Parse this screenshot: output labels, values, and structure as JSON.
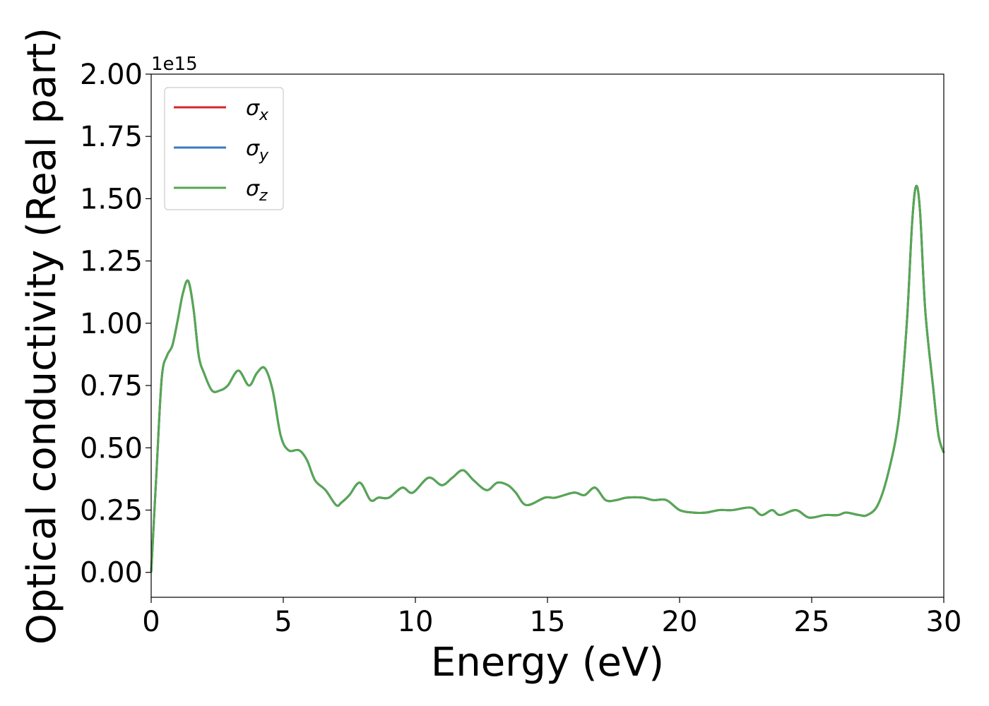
{
  "chart_data": {
    "type": "line",
    "xlabel": "Energy (eV)",
    "ylabel": "Optical conductivity (Real part)",
    "y_offset_label": "1e15",
    "xlim": [
      0,
      30
    ],
    "ylim": [
      -0.1,
      2.0
    ],
    "x_ticks": [
      "0",
      "5",
      "10",
      "15",
      "20",
      "25",
      "30"
    ],
    "y_ticks": [
      "0.00",
      "0.25",
      "0.50",
      "0.75",
      "1.00",
      "1.25",
      "1.50",
      "1.75",
      "2.00"
    ],
    "grid": false,
    "legend_position": "top-left",
    "x": [
      0,
      0.2,
      0.4,
      0.6,
      0.8,
      1.0,
      1.2,
      1.4,
      1.6,
      1.8,
      2.0,
      2.3,
      2.6,
      2.9,
      3.3,
      3.7,
      4.0,
      4.3,
      4.6,
      4.9,
      5.2,
      5.6,
      5.9,
      6.2,
      6.6,
      7.0,
      7.2,
      7.5,
      7.9,
      8.3,
      8.6,
      9.0,
      9.5,
      9.9,
      10.5,
      11.0,
      11.4,
      11.8,
      12.2,
      12.7,
      13.1,
      13.5,
      13.8,
      14.2,
      14.9,
      15.3,
      16.0,
      16.4,
      16.8,
      17.2,
      17.6,
      18.0,
      18.6,
      19.0,
      19.5,
      20.0,
      20.5,
      21.0,
      21.5,
      22.0,
      22.7,
      23.1,
      23.5,
      23.8,
      24.4,
      24.9,
      25.5,
      26.0,
      26.3,
      26.8,
      27.1,
      27.5,
      27.9,
      28.3,
      28.6,
      28.8,
      28.95,
      29.1,
      29.3,
      29.6,
      29.8,
      30.0
    ],
    "series": [
      {
        "name": "x",
        "color": "#d62728",
        "values": [
          0.0,
          0.4,
          0.78,
          0.87,
          0.91,
          1.01,
          1.12,
          1.17,
          1.06,
          0.87,
          0.8,
          0.73,
          0.73,
          0.75,
          0.81,
          0.75,
          0.8,
          0.82,
          0.73,
          0.55,
          0.49,
          0.49,
          0.45,
          0.37,
          0.33,
          0.27,
          0.28,
          0.31,
          0.36,
          0.29,
          0.3,
          0.3,
          0.34,
          0.32,
          0.38,
          0.35,
          0.38,
          0.41,
          0.37,
          0.33,
          0.36,
          0.35,
          0.32,
          0.27,
          0.3,
          0.3,
          0.32,
          0.31,
          0.34,
          0.29,
          0.29,
          0.3,
          0.3,
          0.29,
          0.29,
          0.25,
          0.24,
          0.24,
          0.25,
          0.25,
          0.26,
          0.23,
          0.25,
          0.23,
          0.25,
          0.22,
          0.23,
          0.23,
          0.24,
          0.23,
          0.23,
          0.27,
          0.4,
          0.62,
          1.0,
          1.4,
          1.55,
          1.45,
          1.05,
          0.74,
          0.55,
          0.48
        ]
      },
      {
        "name": "y",
        "color": "#3a7bbf",
        "values": [
          0.0,
          0.4,
          0.78,
          0.87,
          0.91,
          1.01,
          1.12,
          1.17,
          1.06,
          0.87,
          0.8,
          0.73,
          0.73,
          0.75,
          0.81,
          0.75,
          0.8,
          0.82,
          0.73,
          0.55,
          0.49,
          0.49,
          0.45,
          0.37,
          0.33,
          0.27,
          0.28,
          0.31,
          0.36,
          0.29,
          0.3,
          0.3,
          0.34,
          0.32,
          0.38,
          0.35,
          0.38,
          0.41,
          0.37,
          0.33,
          0.36,
          0.35,
          0.32,
          0.27,
          0.3,
          0.3,
          0.32,
          0.31,
          0.34,
          0.29,
          0.29,
          0.3,
          0.3,
          0.29,
          0.29,
          0.25,
          0.24,
          0.24,
          0.25,
          0.25,
          0.26,
          0.23,
          0.25,
          0.23,
          0.25,
          0.22,
          0.23,
          0.23,
          0.24,
          0.23,
          0.23,
          0.27,
          0.4,
          0.62,
          1.0,
          1.4,
          1.55,
          1.45,
          1.05,
          0.74,
          0.55,
          0.48
        ]
      },
      {
        "name": "z",
        "color": "#55a852",
        "values": [
          0.0,
          0.4,
          0.78,
          0.87,
          0.91,
          1.01,
          1.12,
          1.17,
          1.06,
          0.87,
          0.8,
          0.73,
          0.73,
          0.75,
          0.81,
          0.75,
          0.8,
          0.82,
          0.73,
          0.55,
          0.49,
          0.49,
          0.45,
          0.37,
          0.33,
          0.27,
          0.28,
          0.31,
          0.36,
          0.29,
          0.3,
          0.3,
          0.34,
          0.32,
          0.38,
          0.35,
          0.38,
          0.41,
          0.37,
          0.33,
          0.36,
          0.35,
          0.32,
          0.27,
          0.3,
          0.3,
          0.32,
          0.31,
          0.34,
          0.29,
          0.29,
          0.3,
          0.3,
          0.29,
          0.29,
          0.25,
          0.24,
          0.24,
          0.25,
          0.25,
          0.26,
          0.23,
          0.25,
          0.23,
          0.25,
          0.22,
          0.23,
          0.23,
          0.24,
          0.23,
          0.23,
          0.27,
          0.4,
          0.62,
          1.0,
          1.4,
          1.55,
          1.45,
          1.05,
          0.74,
          0.55,
          0.48
        ]
      }
    ],
    "legend": [
      {
        "symbol": "σ",
        "subscript": "x"
      },
      {
        "symbol": "σ",
        "subscript": "y"
      },
      {
        "symbol": "σ",
        "subscript": "z"
      }
    ]
  }
}
